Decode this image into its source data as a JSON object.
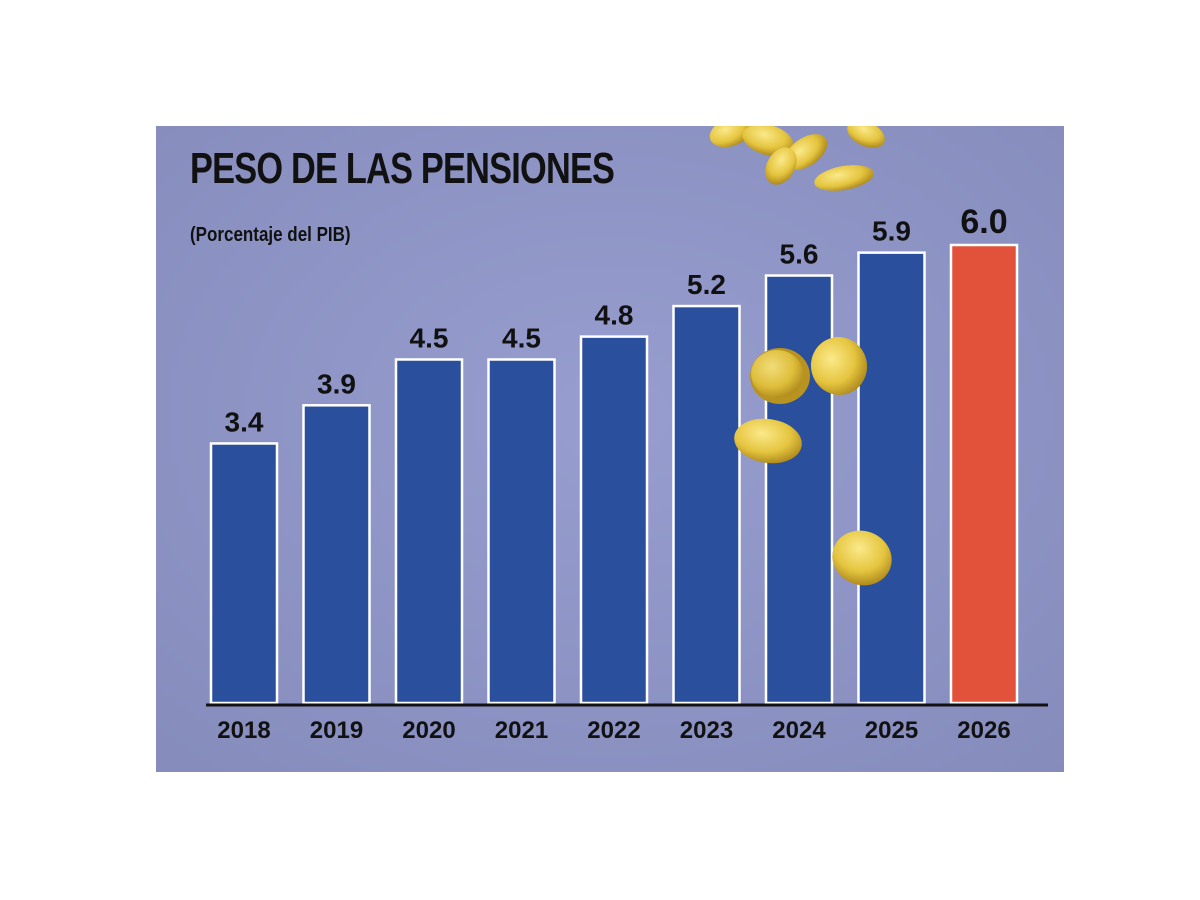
{
  "chart_data": {
    "type": "bar",
    "title": "PESO DE LAS PENSIONES",
    "subtitle": "(Porcentaje del PIB)",
    "categories": [
      "2018",
      "2019",
      "2020",
      "2021",
      "2022",
      "2023",
      "2024",
      "2025",
      "2026"
    ],
    "values": [
      3.4,
      3.9,
      4.5,
      4.5,
      4.8,
      5.2,
      5.6,
      5.9,
      6.0
    ],
    "value_labels": [
      "3.4",
      "3.9",
      "4.5",
      "4.5",
      "4.8",
      "5.2",
      "5.6",
      "5.9",
      "6.0"
    ],
    "ylim": [
      0,
      6.0
    ],
    "grid": false,
    "legend": "none",
    "highlight_index": 8,
    "colors": {
      "background": "#8f96c6",
      "bar": "#2a4f9c",
      "bar_highlight": "#e2523a",
      "bar_outline": "#ffffff",
      "axis": "#111111",
      "text": "#111111",
      "coin": "#e5c53f",
      "coin_shade": "#b08b1c"
    }
  },
  "decoration": {
    "coins": "falling-gold-coins"
  }
}
